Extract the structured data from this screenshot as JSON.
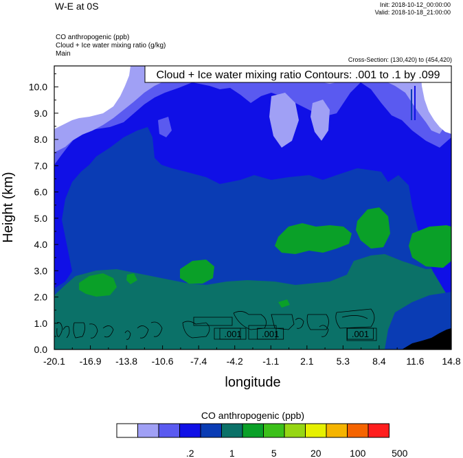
{
  "header": {
    "title": "W-E at 0S",
    "init": "Init: 2018-10-12_00:00:00",
    "valid": "Valid: 2018-10-18_21:00:00",
    "field1": "CO anthropogenic   (ppb)",
    "field2": "Cloud + Ice water mixing ratio   (g/kg)",
    "field3": "Main",
    "cross_section": "Cross-Section: (130,420) to (454,420)"
  },
  "chart_data": {
    "type": "heatmap",
    "title": "",
    "contour_label": "Cloud + Ice water mixing ratio Contours: .001 to .1 by .099",
    "xlabel": "longitude",
    "ylabel": "Height (km)",
    "x_ticks": [
      "-20.1",
      "-16.9",
      "-13.8",
      "-10.6",
      "-7.4",
      "-4.2",
      "-1.1",
      "2.1",
      "5.3",
      "8.4",
      "11.6",
      "14.8"
    ],
    "y_ticks": [
      "0.0",
      "1.0",
      "2.0",
      "3.0",
      "4.0",
      "5.0",
      "6.0",
      "7.0",
      "8.0",
      "9.0",
      "10.0"
    ],
    "xlim": [
      -20.1,
      14.8
    ],
    "ylim": [
      0,
      10.8
    ],
    "contour_labels": [
      {
        "text": ".001",
        "x": -4.4,
        "y": 0.6
      },
      {
        "text": ".001",
        "x": -1.1,
        "y": 0.6
      },
      {
        "text": ".001",
        "x": 6.8,
        "y": 0.6
      }
    ],
    "colorbar": {
      "title": "CO anthropogenic  (ppb)",
      "colors": [
        "#ffffff",
        "#a0a0f5",
        "#5a5af0",
        "#1010e6",
        "#0a3cb4",
        "#0b7168",
        "#0aa028",
        "#3cc01a",
        "#96d614",
        "#e6f000",
        "#f5b400",
        "#f56400",
        "#ff1e1e"
      ],
      "labels": [
        {
          "text": ".2",
          "after_box": 3
        },
        {
          "text": "1",
          "after_box": 5
        },
        {
          "text": "5",
          "after_box": 7
        },
        {
          "text": "20",
          "after_box": 9
        },
        {
          "text": "100",
          "after_box": 11
        },
        {
          "text": "500",
          "after_box": 13
        }
      ]
    }
  }
}
